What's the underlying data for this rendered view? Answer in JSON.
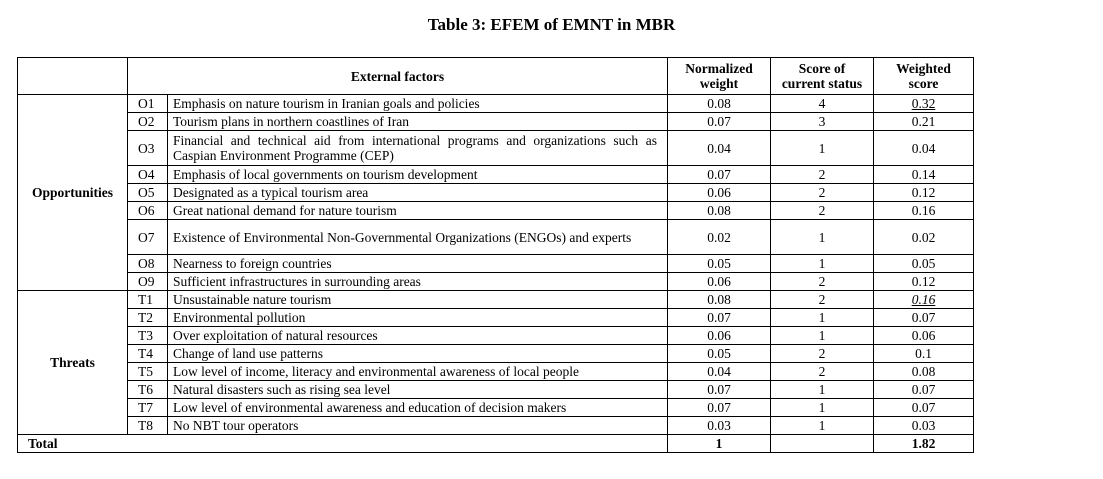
{
  "caption": "Table 3: EFEM of EMNT in MBR",
  "headers": {
    "factors": "External factors",
    "weight_line1": "Normalized",
    "weight_line2": "weight",
    "score_line1": "Score of",
    "score_line2": "current status",
    "weighted_line1": "Weighted",
    "weighted_line2": "score"
  },
  "groups": {
    "opportunities": "Opportunities",
    "threats": "Threats"
  },
  "opportunities": [
    {
      "code": "O1",
      "factor": "Emphasis on nature tourism in Iranian goals and policies",
      "weight": "0.08",
      "score": "4",
      "weighted": "0.32"
    },
    {
      "code": "O2",
      "factor": "Tourism plans in northern coastlines of Iran",
      "weight": "0.07",
      "score": "3",
      "weighted": "0.21"
    },
    {
      "code": "O3",
      "factor": "Financial and technical aid from international programs and organizations such as Caspian Environment Programme (CEP)",
      "weight": "0.04",
      "score": "1",
      "weighted": "0.04"
    },
    {
      "code": "O4",
      "factor": "Emphasis of local governments on tourism development",
      "weight": "0.07",
      "score": "2",
      "weighted": "0.14"
    },
    {
      "code": "O5",
      "factor": "Designated as a typical tourism area",
      "weight": "0.06",
      "score": "2",
      "weighted": "0.12"
    },
    {
      "code": "O6",
      "factor": "Great national demand for nature tourism",
      "weight": "0.08",
      "score": "2",
      "weighted": "0.16"
    },
    {
      "code": "O7",
      "factor": "Existence of Environmental Non-Governmental Organizations (ENGOs) and experts",
      "weight": "0.02",
      "score": "1",
      "weighted": "0.02"
    },
    {
      "code": "O8",
      "factor": "Nearness to foreign countries",
      "weight": "0.05",
      "score": "1",
      "weighted": "0.05"
    },
    {
      "code": "O9",
      "factor": "Sufficient infrastructures in surrounding areas",
      "weight": "0.06",
      "score": "2",
      "weighted": "0.12"
    }
  ],
  "threats": [
    {
      "code": "T1",
      "factor": "Unsustainable nature tourism",
      "weight": "0.08",
      "score": "2",
      "weighted": "0.16"
    },
    {
      "code": "T2",
      "factor": "Environmental pollution",
      "weight": "0.07",
      "score": "1",
      "weighted": "0.07"
    },
    {
      "code": "T3",
      "factor": "Over exploitation of natural resources",
      "weight": "0.06",
      "score": "1",
      "weighted": "0.06"
    },
    {
      "code": "T4",
      "factor": "Change of land use patterns",
      "weight": "0.05",
      "score": "2",
      "weighted": "0.1"
    },
    {
      "code": "T5",
      "factor": "Low level of income, literacy and environmental awareness of local people",
      "weight": "0.04",
      "score": "2",
      "weighted": "0.08"
    },
    {
      "code": "T6",
      "factor": "Natural disasters such as rising sea level",
      "weight": "0.07",
      "score": "1",
      "weighted": "0.07"
    },
    {
      "code": "T7",
      "factor": "Low level of environmental awareness and education of decision makers",
      "weight": "0.07",
      "score": "1",
      "weighted": "0.07"
    },
    {
      "code": "T8",
      "factor": "No NBT tour operators",
      "weight": "0.03",
      "score": "1",
      "weighted": "0.03"
    }
  ],
  "total": {
    "label": "Total",
    "weight": "1",
    "weighted": "1.82"
  }
}
